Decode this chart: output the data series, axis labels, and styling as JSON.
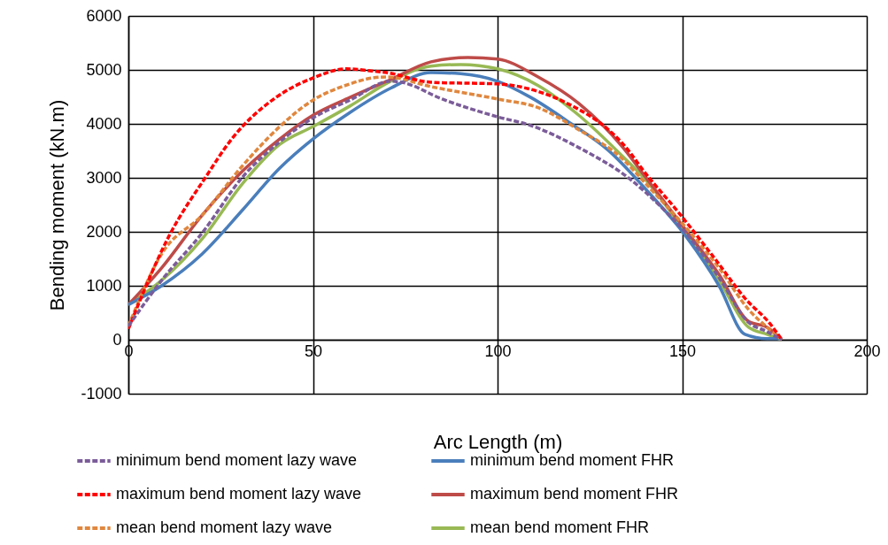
{
  "chart_data": {
    "type": "line",
    "xlabel": "Arc Length (m)",
    "ylabel": "Bending  moment (kN.m)",
    "xlim": [
      0,
      200
    ],
    "xticks": [
      0,
      50,
      100,
      150,
      200
    ],
    "ylim": [
      -1000,
      6000
    ],
    "yticks": [
      -1000,
      0,
      1000,
      2000,
      3000,
      4000,
      5000,
      6000
    ],
    "grid": true,
    "legend": "bottom",
    "marker": "none",
    "series": [
      {
        "name": "minimum bend moment lazy wave",
        "color": "#7b5c99",
        "line_style": "dashed",
        "x": [
          0,
          9,
          20,
          31,
          41,
          50,
          60,
          71,
          74,
          85,
          100,
          109,
          122,
          136,
          144,
          151,
          160,
          168,
          173,
          177
        ],
        "values": [
          250,
          1100,
          1980,
          3020,
          3670,
          4110,
          4440,
          4790,
          4770,
          4460,
          4130,
          3970,
          3560,
          2970,
          2480,
          1980,
          1150,
          320,
          150,
          0
        ]
      },
      {
        "name": "maximum bend moment lazy wave",
        "color": "#ff0000",
        "line_style": "dashed",
        "x": [
          0,
          11,
          21,
          28,
          40,
          50,
          59,
          66,
          70,
          82,
          100,
          111,
          118,
          136,
          139,
          149,
          159,
          167,
          174,
          177
        ],
        "values": [
          200,
          1920,
          3020,
          3720,
          4490,
          4850,
          5020,
          4980,
          4950,
          4770,
          4740,
          4600,
          4410,
          3460,
          3180,
          2360,
          1490,
          770,
          280,
          0
        ]
      },
      {
        "name": "mean bend moment lazy wave",
        "color": "#e0873e",
        "line_style": "dashed",
        "x": [
          0,
          9,
          20,
          31,
          41,
          50,
          60,
          66,
          70,
          82,
          100,
          111,
          122,
          134,
          140,
          151,
          160,
          168,
          173,
          177
        ],
        "values": [
          250,
          1590,
          2310,
          3230,
          3950,
          4440,
          4740,
          4850,
          4870,
          4690,
          4460,
          4300,
          3890,
          3340,
          2900,
          2080,
          1330,
          560,
          230,
          0
        ]
      },
      {
        "name": "minimum bend moment FHR",
        "color": "#4a7ebb",
        "line_style": "solid",
        "x": [
          0,
          9,
          20,
          31,
          41,
          50,
          60,
          71,
          82,
          90,
          100,
          109,
          120,
          130,
          140,
          151,
          160,
          167,
          173,
          177
        ],
        "values": [
          650,
          1000,
          1590,
          2410,
          3180,
          3720,
          4210,
          4660,
          4950,
          4930,
          4790,
          4490,
          4000,
          3510,
          2800,
          1920,
          1000,
          100,
          20,
          20
        ]
      },
      {
        "name": "maximum bend moment FHR",
        "color": "#be4b48",
        "line_style": "solid",
        "x": [
          0,
          9,
          20,
          31,
          41,
          50,
          60,
          71,
          82,
          92,
          100,
          111,
          122,
          134,
          140,
          151,
          160,
          168,
          173,
          177
        ],
        "values": [
          650,
          1330,
          2310,
          3130,
          3720,
          4160,
          4490,
          4820,
          5150,
          5230,
          5200,
          4870,
          4380,
          3560,
          3020,
          2030,
          1210,
          340,
          230,
          0
        ]
      },
      {
        "name": "mean bend moment FHR",
        "color": "#98b954",
        "line_style": "solid",
        "x": [
          0,
          9,
          20,
          31,
          41,
          50,
          60,
          71,
          82,
          90,
          100,
          111,
          122,
          134,
          140,
          151,
          160,
          168,
          173,
          177
        ],
        "values": [
          650,
          1100,
          1870,
          2900,
          3620,
          3950,
          4330,
          4790,
          5070,
          5100,
          5020,
          4710,
          4160,
          3390,
          2970,
          1980,
          1100,
          230,
          100,
          0
        ]
      }
    ]
  }
}
